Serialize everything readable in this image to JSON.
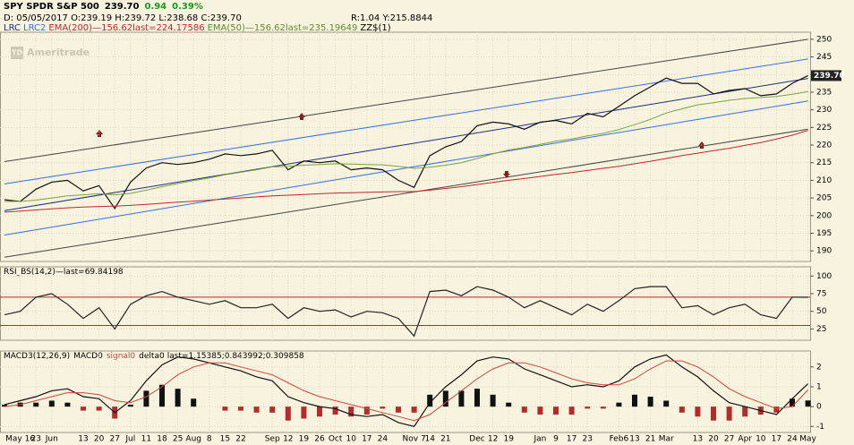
{
  "header": {
    "symbol": "SPY SPDR S&P 500",
    "last": "239.70",
    "change": "0.94",
    "change_pct": "0.39%",
    "ohlc": "D: 05/05/2017 O:239.19 H:239.72 L:238.68 C:239.70",
    "stats": "R:1.04 Y:215.8844",
    "watermark_logo": "TD",
    "watermark": "Ameritrade"
  },
  "chart_data": [
    {
      "type": "line",
      "studies": [
        "LRC",
        "LRC2"
      ],
      "study_zz": "ZZ$(1)",
      "ylim": [
        187,
        252
      ],
      "yticks": [
        190,
        195,
        200,
        205,
        210,
        215,
        220,
        225,
        230,
        235,
        240,
        245,
        250
      ],
      "grid": true,
      "channels": [
        {
          "color": "#444444",
          "x": [
            0,
            51
          ],
          "values": [
            215.3,
            250
          ]
        },
        {
          "color": "#3a6fd8",
          "x": [
            0,
            51
          ],
          "values": [
            209,
            244.4
          ]
        },
        {
          "color": "#1b2f7a",
          "x": [
            0,
            51
          ],
          "values": [
            201.4,
            238.9
          ]
        },
        {
          "color": "#3a6fd8",
          "x": [
            0,
            51
          ],
          "values": [
            194.5,
            232.5
          ]
        },
        {
          "color": "#444444",
          "x": [
            0,
            51
          ],
          "values": [
            188.2,
            224.5
          ]
        }
      ],
      "series": [
        {
          "color": "#111111",
          "values": [
            204.5,
            204,
            207.5,
            209.5,
            210,
            207,
            208.5,
            202,
            209.5,
            213.5,
            215,
            214.5,
            215,
            216,
            217.5,
            217,
            217.5,
            218.5,
            213,
            215.5,
            215,
            215.5,
            213,
            213.5,
            213,
            210,
            208,
            217,
            219.5,
            221,
            225.5,
            226.5,
            226,
            224.5,
            226.5,
            227,
            226,
            229,
            228,
            231,
            234,
            236.5,
            239,
            237.5,
            237.5,
            234.5,
            235.5,
            236,
            234,
            234.5,
            237.5,
            239.7
          ]
        },
        {
          "name": "EMA(200)",
          "legend_text": "—156.62last=224.17586",
          "color": "#c0282d",
          "values": [
            201,
            201.3,
            201.6,
            201.9,
            202.2,
            202.4,
            202.6,
            202.7,
            202.9,
            203.2,
            203.5,
            203.8,
            204.1,
            204.4,
            204.7,
            205,
            205.3,
            205.6,
            205.8,
            206,
            206.2,
            206.4,
            206.5,
            206.6,
            206.7,
            206.8,
            206.8,
            207.2,
            207.7,
            208.2,
            208.8,
            209.4,
            210,
            210.5,
            211.1,
            211.7,
            212.2,
            212.8,
            213.4,
            214,
            214.7,
            215.4,
            216.2,
            217,
            217.7,
            218.4,
            219.1,
            219.9,
            220.7,
            221.7,
            222.8,
            224.18
          ]
        },
        {
          "name": "EMA(50)",
          "legend_text": "—156.62last=235.19649",
          "color": "#7da33a",
          "values": [
            204,
            204,
            204.4,
            205,
            205.6,
            205.9,
            206.2,
            205.9,
            206.3,
            207.2,
            208.2,
            209.1,
            209.9,
            210.7,
            211.6,
            212.3,
            213,
            213.8,
            214,
            214.3,
            214.5,
            214.7,
            214.6,
            214.5,
            214.4,
            214,
            213.4,
            213.7,
            214.3,
            215,
            216.2,
            217.5,
            218.6,
            219.3,
            220.2,
            221.1,
            221.7,
            222.6,
            223.3,
            224.4,
            225.8,
            227.3,
            229.1,
            230.3,
            231.4,
            232,
            232.7,
            233.2,
            233.5,
            233.8,
            234.4,
            235.2
          ]
        }
      ]
    },
    {
      "type": "line",
      "title": "RSI_BS(14,2)",
      "last_label": "—last=69.84198",
      "ylim": [
        9,
        113
      ],
      "yticks": [
        25,
        50,
        75,
        100
      ],
      "grid": true,
      "hlines": [
        70,
        30
      ],
      "hline_color": "#b52a2a",
      "series": [
        {
          "color": "#222222",
          "values": [
            45,
            50,
            70,
            75,
            60,
            40,
            55,
            25,
            60,
            72,
            78,
            70,
            65,
            60,
            65,
            55,
            55,
            60,
            40,
            55,
            50,
            52,
            42,
            50,
            48,
            40,
            15,
            78,
            80,
            72,
            85,
            80,
            70,
            55,
            65,
            55,
            45,
            60,
            50,
            65,
            82,
            85,
            85,
            55,
            58,
            45,
            55,
            60,
            45,
            40,
            70,
            69.84
          ]
        }
      ]
    },
    {
      "type": "line",
      "title": "MACD3(12,26,9)",
      "last_label": "last=1.15385;0.843992;0.309858",
      "ylim": [
        -1.3,
        2.8
      ],
      "yticks": [
        -1,
        0,
        1,
        2
      ],
      "grid": true,
      "categories": [
        null,
        "May 16",
        "23",
        "Jun",
        null,
        "13",
        "20",
        "27",
        "Jul",
        "11",
        "18",
        "25",
        "Aug",
        "8",
        "15",
        "22",
        null,
        "Sep",
        "12",
        "19",
        "26",
        "Oct",
        "10",
        "17",
        "24",
        null,
        "Nov 7",
        "14",
        "21",
        null,
        "Dec",
        "12",
        "19",
        null,
        "Jan",
        "9",
        "17",
        "23",
        null,
        "Feb6",
        "13",
        "21",
        "Mar",
        null,
        "13",
        "20",
        "27",
        "Apr",
        "10",
        "17",
        "24",
        "May"
      ],
      "series": [
        {
          "name": "MACD0",
          "color": "#111111",
          "values": [
            0.1,
            0.3,
            0.5,
            0.8,
            0.9,
            0.5,
            0.4,
            -0.3,
            0.3,
            1.3,
            2.1,
            2.5,
            2.4,
            2.2,
            2.0,
            1.8,
            1.5,
            1.3,
            0.5,
            0.2,
            0.0,
            -0.1,
            -0.4,
            -0.5,
            -0.4,
            -0.8,
            -1.0,
            0.2,
            1.0,
            1.6,
            2.3,
            2.5,
            2.4,
            1.9,
            1.6,
            1.3,
            1.0,
            1.1,
            1.0,
            1.3,
            2.0,
            2.4,
            2.6,
            2.0,
            1.5,
            0.8,
            0.2,
            0.0,
            -0.2,
            -0.4,
            0.4,
            1.15
          ]
        },
        {
          "name": "signal0",
          "color": "#d0463c",
          "values": [
            0.0,
            0.1,
            0.3,
            0.5,
            0.7,
            0.7,
            0.6,
            0.3,
            0.2,
            0.5,
            1.0,
            1.6,
            2.0,
            2.2,
            2.2,
            2.0,
            1.8,
            1.6,
            1.2,
            0.8,
            0.5,
            0.3,
            0.1,
            -0.1,
            -0.3,
            -0.5,
            -0.7,
            -0.4,
            0.2,
            0.8,
            1.4,
            1.9,
            2.2,
            2.2,
            2.0,
            1.7,
            1.4,
            1.2,
            1.1,
            1.1,
            1.4,
            1.9,
            2.3,
            2.3,
            2.0,
            1.5,
            0.9,
            0.5,
            0.2,
            -0.1,
            0.0,
            0.84
          ]
        },
        {
          "name": "delta0",
          "style": "bar",
          "colors": [
            "#111111",
            "#b52a2a"
          ],
          "values": [
            0.1,
            0.2,
            0.2,
            0.3,
            0.2,
            -0.2,
            -0.2,
            -0.6,
            0.1,
            0.8,
            1.1,
            0.9,
            0.4,
            0.0,
            -0.2,
            -0.2,
            -0.3,
            -0.3,
            -0.7,
            -0.6,
            -0.5,
            -0.4,
            -0.5,
            -0.4,
            -0.1,
            -0.3,
            -0.3,
            0.6,
            0.8,
            0.8,
            0.9,
            0.6,
            0.2,
            -0.3,
            -0.4,
            -0.4,
            -0.4,
            -0.1,
            -0.1,
            0.2,
            0.6,
            0.5,
            0.3,
            -0.3,
            -0.5,
            -0.7,
            -0.7,
            -0.5,
            -0.4,
            -0.3,
            0.4,
            0.31
          ]
        }
      ]
    }
  ]
}
